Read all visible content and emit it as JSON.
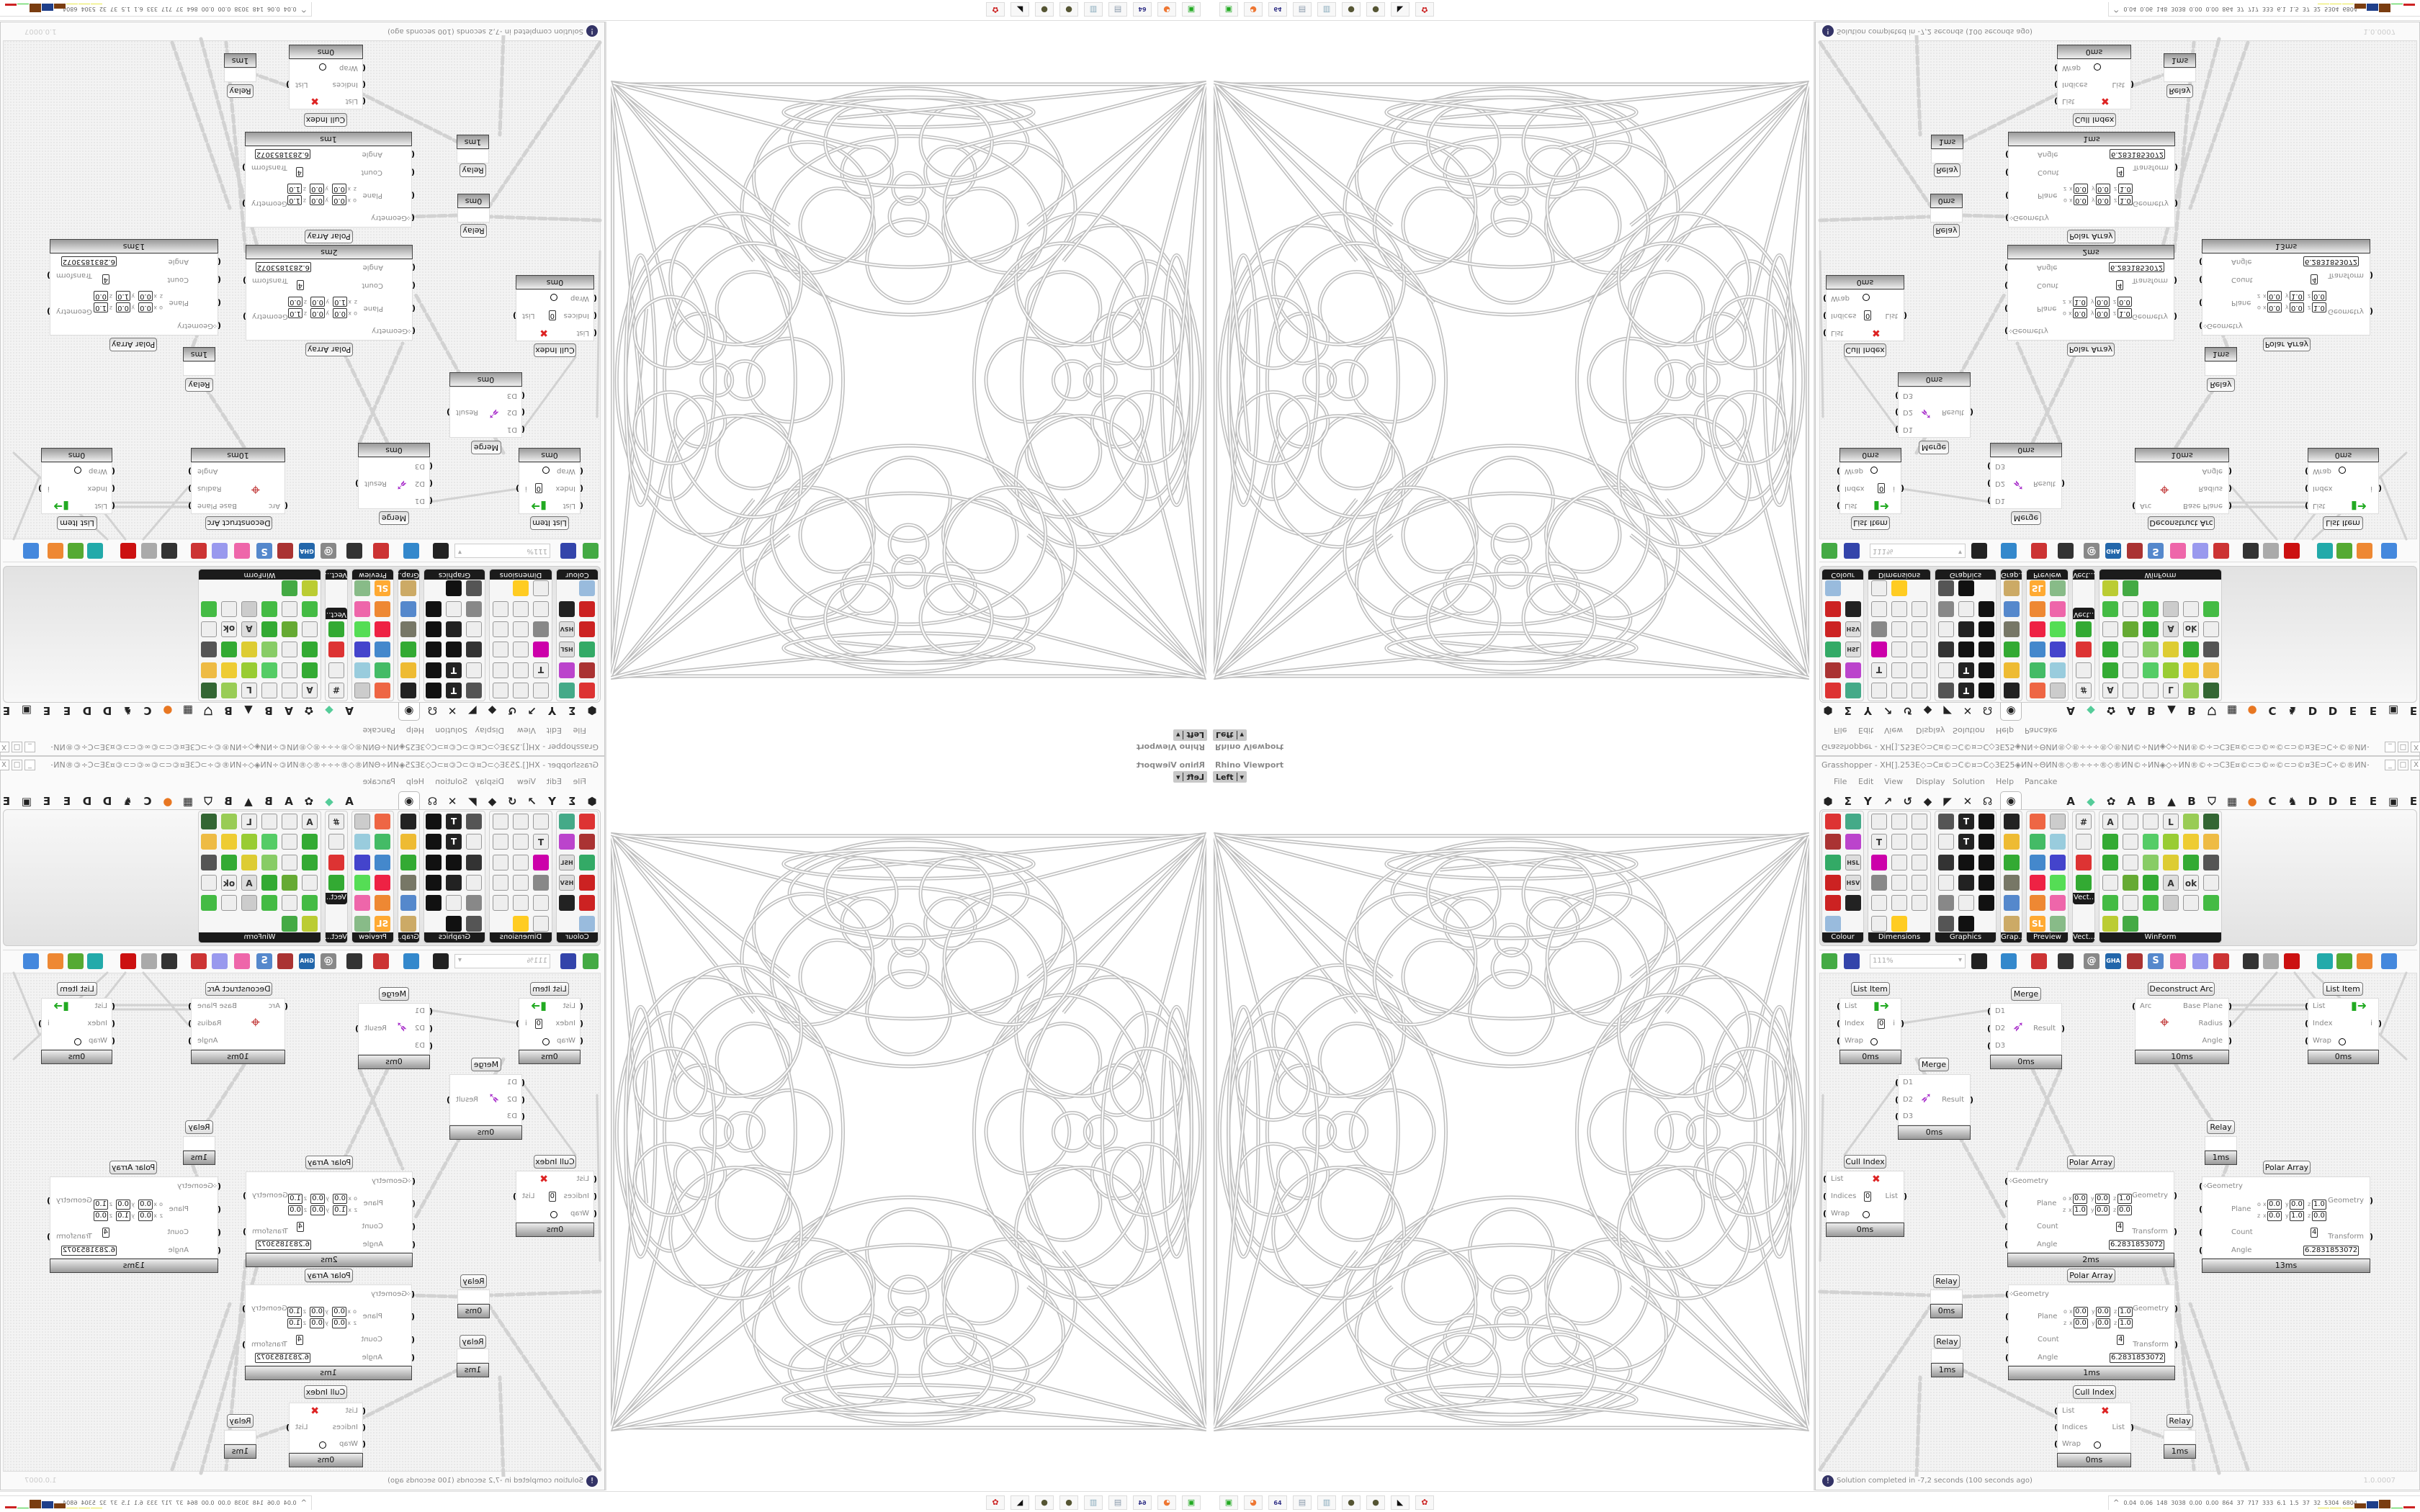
{
  "viewport": {
    "title": "Rhino Viewport",
    "view": "Left"
  },
  "grasshopper": {
    "title": "Grasshopper - XH[].253E◇⊃C¤©⊃C©¤⊃C◇3E25◈ИN÷ΘИN®◇®÷÷÷®◇®ИN©÷ИN◈◇÷ИN®©÷⊃C3E¤©⊂⊃©∞©⊂⊃©¤3E⊃C÷©®ИN÷◇◈3E¤3E⊞÷25÷⊞3E¤3E◈◇÷¤⊂⊃3E⊞÷÷⊃C...",
    "window_controls": [
      "_",
      "□",
      "X"
    ],
    "menu": [
      "File",
      "Edit",
      "View",
      "Display",
      "Solution",
      "Help",
      "Pancake"
    ],
    "tab_icons": [
      "hexagon-icon",
      "sigma-icon",
      "branch-icon",
      "arrow-icon",
      "curve-icon",
      "surface-icon",
      "mesh-icon",
      "intersect-icon",
      "transform-icon"
    ],
    "selected_tab_icon": "eye-icon",
    "extra_tabs": [
      "A",
      "gem-icon",
      "puzzle-icon",
      "A",
      "B",
      "mountain-icon",
      "B",
      "shield-icon",
      "grid-icon",
      "orange-dot-icon",
      "C",
      "bird-icon",
      "D",
      "D",
      "E",
      "E",
      "film-icon",
      "E"
    ],
    "panels": [
      {
        "label": "Colour",
        "icons": [
          [
            "colour-wheel",
            "#d33"
          ],
          [
            "gradient",
            "#4a8"
          ],
          [
            "box-red",
            "#a33"
          ],
          [
            "triangle-gradient",
            "#b4c"
          ],
          [
            "box-green",
            "#3a6"
          ],
          [
            "hsl",
            "#ddd"
          ],
          [
            "sphere-red",
            "#c22"
          ],
          [
            "hsv",
            "#ddd"
          ],
          [
            "sphere-red",
            "#c22"
          ],
          [
            "prism",
            "#222"
          ],
          [
            "swatch",
            "#9bd"
          ]
        ]
      },
      {
        "label": "Dimensions",
        "icons": [
          [
            "tag-delete",
            "#eee"
          ],
          [
            "dim-linear",
            "#eee"
          ],
          [
            "dim-aligned",
            "#eee"
          ],
          [
            "tag-text",
            "#eee"
          ],
          [
            "dim-line",
            "#eee"
          ],
          [
            "dim-3d",
            "#eee"
          ],
          [
            "magenta-swatch",
            "#c0a"
          ],
          [
            "dim-ordinate",
            "#eee"
          ],
          [
            "dim-angular",
            "#eee"
          ],
          [
            "hatch-grid",
            "#888"
          ],
          [
            "dim-radial",
            "#eee"
          ],
          [
            "dim-edit",
            "#eee"
          ],
          [
            "dim-arc",
            "#eee"
          ],
          [
            "dim-spline",
            "#eee"
          ],
          [
            "dim-leader",
            "#eee"
          ],
          [
            "dim-line",
            "#eee"
          ],
          [
            "warning-triangle",
            "#fc2"
          ]
        ]
      },
      {
        "label": "Graphics",
        "icons": [
          [
            "circle-dark",
            "#555"
          ],
          [
            "text-t",
            "#222"
          ],
          [
            "eye-ring",
            "#111"
          ],
          [
            "dot-ring",
            "#eee"
          ],
          [
            "text-t",
            "#222"
          ],
          [
            "square-ring",
            "#111"
          ],
          [
            "blur-dot",
            "#333"
          ],
          [
            "list-ring",
            "#111"
          ],
          [
            "gear-star",
            "#111"
          ],
          [
            "ring-open",
            "#eee"
          ],
          [
            "link",
            "#222"
          ],
          [
            "save-mountain",
            "#111"
          ],
          [
            "sphere-grey",
            "#888"
          ],
          [
            "dot-circle",
            "#eee"
          ],
          [
            "save-star",
            "#111"
          ],
          [
            "sphere-dark",
            "#555"
          ],
          [
            "mountain-circle",
            "#111"
          ]
        ]
      },
      {
        "label": "Grap...",
        "icons": [
          [
            "histogram",
            "#222"
          ],
          [
            "gradient-bar",
            "#eb3"
          ],
          [
            "pie-wheel",
            "#3a3"
          ],
          [
            "graph-line",
            "#776"
          ],
          [
            "image-stack",
            "#58c"
          ],
          [
            "graph-chart",
            "#ca6"
          ]
        ]
      },
      {
        "label": "Preview",
        "icons": [
          [
            "egg",
            "#e64"
          ],
          [
            "camera",
            "#ccc"
          ],
          [
            "sphere-green",
            "#4b6"
          ],
          [
            "picture",
            "#9cd"
          ],
          [
            "blob-blue",
            "#48c"
          ],
          [
            "heart-blue",
            "#44c"
          ],
          [
            "blob-red",
            "#e24"
          ],
          [
            "heart-green",
            "#5d5"
          ],
          [
            "square-gradient",
            "#e83"
          ],
          [
            "hearts",
            "#e6a"
          ],
          [
            "sl-text",
            "#fa3"
          ],
          [
            "tree-picture",
            "#8b8"
          ]
        ]
      },
      {
        "label": "Vect...",
        "icons": [
          [
            "numbers-sort",
            "#eee"
          ],
          [
            "path",
            "#eee"
          ],
          [
            "arrows-red",
            "#d33"
          ],
          [
            "arrows-green",
            "#3a3"
          ]
        ]
      },
      {
        "label": "WinForm",
        "icons": [
          [
            "text-a",
            "#eee"
          ],
          [
            "list-form",
            "#eee"
          ],
          [
            "text-lines",
            "#eee"
          ],
          [
            "label",
            "#eee"
          ],
          [
            "chart-green",
            "#9c5"
          ],
          [
            "grid-form",
            "#363"
          ],
          [
            "hatch-green",
            "#3a3"
          ],
          [
            "progress",
            "#eee"
          ],
          [
            "slider",
            "#5c6"
          ],
          [
            "table-green",
            "#9c3"
          ],
          [
            "pie-yellow",
            "#ec3"
          ],
          [
            "layout",
            "#eb4"
          ],
          [
            "checkbox",
            "#3a3"
          ],
          [
            "text-box",
            "#eee"
          ],
          [
            "picture-form",
            "#8c6"
          ],
          [
            "pie-chart",
            "#dc3"
          ],
          [
            "person",
            "#3a3"
          ],
          [
            "tab-control",
            "#555"
          ],
          [
            "numeric-updown",
            "#eee"
          ],
          [
            "box-3d",
            "#6a3"
          ],
          [
            "media-next",
            "#3a3"
          ],
          [
            "font-a",
            "#ddd"
          ],
          [
            "button-ok",
            "#eee"
          ],
          [
            "scroll-bar",
            "#eee"
          ],
          [
            "panel-green",
            "#4b4"
          ],
          [
            "list-box",
            "#eee"
          ],
          [
            "green-square",
            "#4b4"
          ],
          [
            "calendar",
            "#ccc"
          ],
          [
            "track-bar",
            "#eee"
          ],
          [
            "button-green",
            "#4b4"
          ],
          [
            "bar-chart",
            "#bc3"
          ],
          [
            "next-arrow",
            "#4a4"
          ]
        ]
      }
    ],
    "vect_label": "Vect..",
    "zoom_value": "111%",
    "toolbar_icons": [
      [
        "new-file",
        "#4a4"
      ],
      [
        "save",
        "#34a"
      ],
      [
        "zoom-extents",
        "#222"
      ],
      [
        "preview-eye",
        "#38c"
      ],
      [
        "sketch-brush",
        "#c33"
      ],
      [
        "cluster",
        "#333"
      ],
      [
        "at-sign",
        "#888"
      ],
      [
        "gha",
        "#26a"
      ],
      [
        "window",
        "#a33"
      ],
      [
        "search",
        "#58c"
      ],
      [
        "box-help",
        "#e6a"
      ],
      [
        "bulb",
        "#99e"
      ],
      [
        "wires-x",
        "#c33"
      ],
      [
        "dark-blob",
        "#333"
      ],
      [
        "ring",
        "#aaa"
      ],
      [
        "red-gem",
        "#c11"
      ],
      [
        "teal-shape",
        "#2aa"
      ],
      [
        "green-shape",
        "#5a3"
      ],
      [
        "orange-ball",
        "#e83"
      ],
      [
        "blue-sphere",
        "#48d"
      ]
    ],
    "nodes": [
      {
        "title": "List Item",
        "inputs": [
          {
            "label": "List"
          },
          {
            "label": "Index",
            "value": "0"
          },
          {
            "label": "Wrap",
            "toggle": true
          }
        ],
        "outputs": [
          {
            "label": "i"
          }
        ],
        "time": "0ms",
        "icon": "list-item"
      },
      {
        "title": "Merge",
        "inputs": [
          {
            "label": "D1"
          },
          {
            "label": "D2"
          },
          {
            "label": "D3"
          }
        ],
        "outputs": [
          {
            "label": "Result"
          }
        ],
        "time": "0ms",
        "icon": "merge"
      },
      {
        "title": "Deconstruct Arc",
        "inputs": [
          {
            "label": "Arc"
          }
        ],
        "outputs": [
          {
            "label": "Base Plane"
          },
          {
            "label": "Radius"
          },
          {
            "label": "Angle"
          }
        ],
        "time": "10ms",
        "icon": "target"
      },
      {
        "title": "List Item",
        "inputs": [
          {
            "label": "List"
          },
          {
            "label": "Index"
          },
          {
            "label": "Wrap",
            "toggle": true
          }
        ],
        "outputs": [
          {
            "label": "i"
          }
        ],
        "time": "0ms",
        "icon": "list-item"
      },
      {
        "title": "Merge",
        "inputs": [
          {
            "label": "D1"
          },
          {
            "label": "D2"
          },
          {
            "label": "D3"
          }
        ],
        "outputs": [
          {
            "label": "Result"
          }
        ],
        "time": "0ms",
        "icon": "merge"
      },
      {
        "title": "Relay",
        "inputs": [],
        "outputs": [],
        "time": "1ms"
      },
      {
        "title": "Cull Index",
        "inputs": [
          {
            "label": "List"
          },
          {
            "label": "Indices",
            "value": "0"
          },
          {
            "label": "Wrap",
            "toggle": true
          }
        ],
        "outputs": [
          {
            "label": "List"
          }
        ],
        "time": "0ms",
        "icon": "cull"
      },
      {
        "title": "Polar Array",
        "inputs": [
          {
            "label": "Geometry"
          },
          {
            "label": "Plane"
          },
          {
            "label": "Count",
            "value": "4"
          },
          {
            "label": "Angle",
            "value": "6.2831853072"
          }
        ],
        "outputs": [
          {
            "label": "Geometry"
          },
          {
            "label": "Transform"
          }
        ],
        "plane": {
          "o": [
            "0.0",
            "0.0",
            "1.0"
          ],
          "z": [
            "1.0",
            "0.0",
            "0.0"
          ]
        },
        "time": "2ms"
      },
      {
        "title": "Polar Array",
        "inputs": [
          {
            "label": "Geometry"
          },
          {
            "label": "Plane"
          },
          {
            "label": "Count",
            "value": "4"
          },
          {
            "label": "Angle",
            "value": "6.2831853072"
          }
        ],
        "outputs": [
          {
            "label": "Geometry"
          },
          {
            "label": "Transform"
          }
        ],
        "plane": {
          "o": [
            "0.0",
            "0.0",
            "1.0"
          ],
          "z": [
            "0.0",
            "1.0",
            "0.0"
          ]
        },
        "time": "13ms"
      },
      {
        "title": "Relay",
        "inputs": [],
        "outputs": [],
        "time": "0ms"
      },
      {
        "title": "Polar Array",
        "inputs": [
          {
            "label": "Geometry"
          },
          {
            "label": "Plane"
          },
          {
            "label": "Count",
            "value": "4"
          },
          {
            "label": "Angle",
            "value": "6.2831853072"
          }
        ],
        "outputs": [
          {
            "label": "Geometry"
          },
          {
            "label": "Transform"
          }
        ],
        "plane": {
          "o": [
            "0.0",
            "0.0",
            "1.0"
          ],
          "z": [
            "0.0",
            "0.0",
            "1.0"
          ]
        },
        "time": "1ms"
      },
      {
        "title": "Relay",
        "inputs": [],
        "outputs": [],
        "time": "1ms"
      },
      {
        "title": "Cull Index",
        "inputs": [
          {
            "label": "List"
          },
          {
            "label": "Indices"
          },
          {
            "label": "Wrap",
            "toggle": true
          }
        ],
        "outputs": [
          {
            "label": "List"
          }
        ],
        "time": "0ms",
        "icon": "cull"
      },
      {
        "title": "Relay",
        "inputs": [],
        "outputs": [],
        "time": "1ms"
      }
    ],
    "plane_rows": [
      "o",
      "z"
    ],
    "plane_axes": [
      "x",
      "y",
      "z"
    ],
    "status": "Solution completed in -7,2 seconds (100 seconds ago)",
    "version": "1.0.0007"
  },
  "taskbar": {
    "apps": [
      "device-manager-icon",
      "firefox-icon",
      "floppy-64-icon",
      "scroll-icon",
      "notepad-icon",
      "seed-icon",
      "seed-icon",
      "inkscape-icon",
      "red-app-icon"
    ],
    "floppy_label": "64",
    "stats_arrow": "^",
    "stats": [
      "0.04",
      "0.06",
      "148",
      "3038",
      "0.00",
      "0.00",
      "864",
      "37",
      "717",
      "333",
      "6.1",
      "1.5",
      "37",
      "32",
      "5304",
      "6804"
    ],
    "meter_colors": [
      "#e8e84a",
      "#e8e84a",
      "#e8e84a",
      "#7a3d10",
      "#1f3f8a",
      "#7a3d10",
      "#3c3",
      "#c22"
    ]
  }
}
